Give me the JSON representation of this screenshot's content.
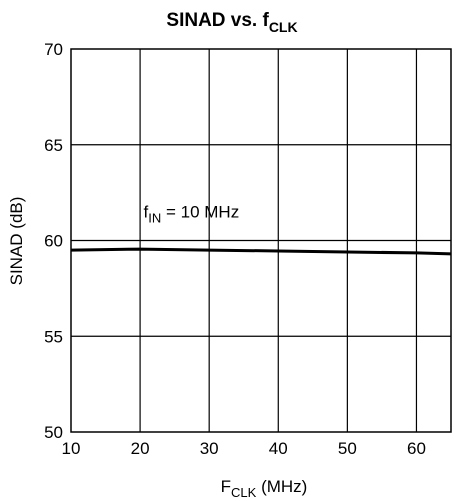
{
  "chart_data": {
    "type": "line",
    "title": "SINAD vs. f",
    "title_sub": "CLK",
    "xlabel": "F",
    "xlabel_sub": "CLK",
    "xlabel_rest": " (MHz)",
    "ylabel": "SINAD (dB)",
    "xlim": [
      10,
      65
    ],
    "ylim": [
      50,
      70
    ],
    "xticks": [
      10,
      20,
      30,
      40,
      50,
      60
    ],
    "yticks": [
      50,
      55,
      60,
      65,
      70
    ],
    "grid": true,
    "annotations": [
      {
        "main": "f",
        "sub": "IN",
        "rest": " = 10 MHz",
        "x": 20.5,
        "y": 61.2
      }
    ],
    "series": [
      {
        "x": [
          10,
          20,
          30,
          40,
          50,
          60,
          65
        ],
        "y": [
          59.5,
          59.55,
          59.5,
          59.45,
          59.4,
          59.35,
          59.3
        ]
      }
    ],
    "line_color": "#000000",
    "grid_color": "#000000"
  }
}
